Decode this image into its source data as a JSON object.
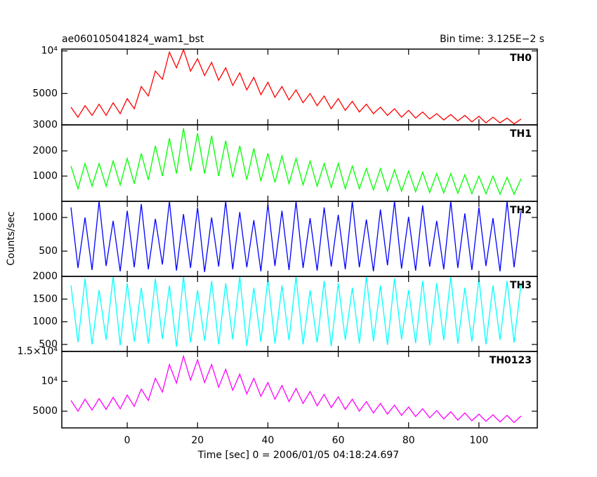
{
  "title": "ae060105041824_wam1_bst",
  "subtitle": "Bin time: 3.125E−2 s",
  "y_label": "Counts/sec",
  "x_label": "Time [sec] 0 = 2006/01/05 04:18:24.697",
  "chart_data": [
    {
      "type": "line",
      "log_y": true,
      "xlim": [
        -18.6,
        116.6
      ],
      "xticks": [
        0,
        20,
        40,
        60,
        80,
        100
      ],
      "ylim": [
        3000,
        10300
      ],
      "yticks": [
        3000,
        5000,
        {
          "value": 10000,
          "label": "10⁴"
        }
      ],
      "x": [
        -16,
        -14,
        -12,
        -10,
        -8,
        -6,
        -4,
        -2,
        0,
        2,
        4,
        6,
        8,
        10,
        12,
        14,
        16,
        18,
        20,
        22,
        24,
        26,
        28,
        30,
        32,
        34,
        36,
        38,
        40,
        42,
        44,
        46,
        48,
        50,
        52,
        54,
        56,
        58,
        60,
        62,
        64,
        66,
        68,
        70,
        72,
        74,
        76,
        78,
        80,
        82,
        84,
        86,
        88,
        90,
        92,
        94,
        96,
        98,
        100,
        102,
        104,
        106,
        108,
        110,
        112
      ],
      "series": [
        {
          "name": "TH0",
          "color": "#ff0000",
          "values": [
            4000,
            3400,
            4100,
            3500,
            4200,
            3500,
            4300,
            3600,
            4600,
            3900,
            5600,
            4800,
            7200,
            6300,
            9800,
            7600,
            10200,
            7200,
            8800,
            6700,
            8300,
            6200,
            7600,
            5700,
            7000,
            5300,
            6500,
            4900,
            6000,
            4700,
            5600,
            4500,
            5300,
            4300,
            5000,
            4100,
            4800,
            3900,
            4600,
            3800,
            4400,
            3700,
            4200,
            3600,
            4000,
            3500,
            3900,
            3400,
            3800,
            3350,
            3700,
            3300,
            3600,
            3250,
            3550,
            3200,
            3500,
            3150,
            3450,
            3100,
            3400,
            3100,
            3350,
            3050,
            3300
          ]
        }
      ]
    },
    {
      "type": "line",
      "log_y": false,
      "xlim": [
        -18.6,
        116.6
      ],
      "xticks": [
        0,
        20,
        40,
        60,
        80,
        100
      ],
      "ylim": [
        0,
        3030
      ],
      "yticks": [
        1000,
        2000
      ],
      "x": [
        -16,
        -14,
        -12,
        -10,
        -8,
        -6,
        -4,
        -2,
        0,
        2,
        4,
        6,
        8,
        10,
        12,
        14,
        16,
        18,
        20,
        22,
        24,
        26,
        28,
        30,
        32,
        34,
        36,
        38,
        40,
        42,
        44,
        46,
        48,
        50,
        52,
        54,
        56,
        58,
        60,
        62,
        64,
        66,
        68,
        70,
        72,
        74,
        76,
        78,
        80,
        82,
        84,
        86,
        88,
        90,
        92,
        94,
        96,
        98,
        100,
        102,
        104,
        106,
        108,
        110,
        112
      ],
      "series": [
        {
          "name": "TH1",
          "color": "#00ff00",
          "values": [
            1400,
            500,
            1500,
            600,
            1500,
            600,
            1600,
            650,
            1700,
            700,
            1900,
            850,
            2200,
            1000,
            2500,
            1100,
            2900,
            1200,
            2700,
            1100,
            2600,
            1000,
            2400,
            950,
            2200,
            850,
            2100,
            800,
            1900,
            750,
            1800,
            700,
            1700,
            650,
            1600,
            600,
            1500,
            550,
            1500,
            500,
            1400,
            500,
            1300,
            450,
            1300,
            400,
            1250,
            400,
            1200,
            380,
            1150,
            350,
            1100,
            330,
            1100,
            320,
            1050,
            300,
            1000,
            300,
            1000,
            280,
            950,
            280,
            900
          ]
        }
      ]
    },
    {
      "type": "line",
      "log_y": false,
      "xlim": [
        -18.6,
        116.6
      ],
      "xticks": [
        0,
        20,
        40,
        60,
        80,
        100
      ],
      "ylim": [
        125,
        1240
      ],
      "yticks": [
        500,
        1000
      ],
      "x": [
        -16,
        -14,
        -12,
        -10,
        -8,
        -6,
        -4,
        -2,
        0,
        2,
        4,
        6,
        8,
        10,
        12,
        14,
        16,
        18,
        20,
        22,
        24,
        26,
        28,
        30,
        32,
        34,
        36,
        38,
        40,
        42,
        44,
        46,
        48,
        50,
        52,
        54,
        56,
        58,
        60,
        62,
        64,
        66,
        68,
        70,
        72,
        74,
        76,
        78,
        80,
        82,
        84,
        86,
        88,
        90,
        92,
        94,
        96,
        98,
        100,
        102,
        104,
        106,
        108,
        110,
        112
      ],
      "series": [
        {
          "name": "TH2",
          "color": "#0000ff",
          "values": [
            1150,
            250,
            1000,
            220,
            1240,
            280,
            950,
            200,
            1100,
            260,
            1200,
            230,
            980,
            300,
            1240,
            210,
            1050,
            250,
            1150,
            190,
            1000,
            270,
            1240,
            230,
            1080,
            260,
            960,
            200,
            1200,
            280,
            1100,
            220,
            1240,
            250,
            990,
            210,
            1150,
            270,
            1040,
            230,
            1240,
            260,
            970,
            200,
            1120,
            290,
            1240,
            240,
            1010,
            210,
            1180,
            270,
            950,
            230,
            1240,
            250,
            1060,
            220,
            1150,
            280,
            990,
            200,
            1240,
            260,
            1100
          ]
        }
      ]
    },
    {
      "type": "line",
      "log_y": false,
      "xlim": [
        -18.6,
        116.6
      ],
      "xticks": [
        0,
        20,
        40,
        60,
        80,
        100
      ],
      "ylim": [
        346,
        2000
      ],
      "yticks": [
        500,
        1000,
        1500,
        2000
      ],
      "x": [
        -16,
        -14,
        -12,
        -10,
        -8,
        -6,
        -4,
        -2,
        0,
        2,
        4,
        6,
        8,
        10,
        12,
        14,
        16,
        18,
        20,
        22,
        24,
        26,
        28,
        30,
        32,
        34,
        36,
        38,
        40,
        42,
        44,
        46,
        48,
        50,
        52,
        54,
        56,
        58,
        60,
        62,
        64,
        66,
        68,
        70,
        72,
        74,
        76,
        78,
        80,
        82,
        84,
        86,
        88,
        90,
        92,
        94,
        96,
        98,
        100,
        102,
        104,
        106,
        108,
        110,
        112
      ],
      "series": [
        {
          "name": "TH3",
          "color": "#00ffff",
          "values": [
            1800,
            550,
            1950,
            500,
            1700,
            600,
            2000,
            480,
            1850,
            560,
            1750,
            520,
            1950,
            620,
            1800,
            450,
            2000,
            540,
            1700,
            580,
            1900,
            500,
            1850,
            610,
            2000,
            470,
            1750,
            560,
            1950,
            520,
            1800,
            590,
            2000,
            500,
            1700,
            540,
            1900,
            460,
            1850,
            600,
            1750,
            520,
            2000,
            570,
            1800,
            490,
            1950,
            610,
            1700,
            530,
            1900,
            480,
            1850,
            590,
            2000,
            520,
            1750,
            560,
            1950,
            500,
            1800,
            600,
            1900,
            540,
            1850
          ]
        }
      ]
    },
    {
      "type": "line",
      "log_y": false,
      "xlim": [
        -18.6,
        116.6
      ],
      "xticks": [
        0,
        20,
        40,
        60,
        80,
        100
      ],
      "ylim": [
        2200,
        15000
      ],
      "yticks": [
        5000,
        {
          "value": 10000,
          "label": "10⁴"
        },
        {
          "value": 15000,
          "label": "1.5×10⁴"
        }
      ],
      "x": [
        -16,
        -14,
        -12,
        -10,
        -8,
        -6,
        -4,
        -2,
        0,
        2,
        4,
        6,
        8,
        10,
        12,
        14,
        16,
        18,
        20,
        22,
        24,
        26,
        28,
        30,
        32,
        34,
        36,
        38,
        40,
        42,
        44,
        46,
        48,
        50,
        52,
        54,
        56,
        58,
        60,
        62,
        64,
        66,
        68,
        70,
        72,
        74,
        76,
        78,
        80,
        82,
        84,
        86,
        88,
        90,
        92,
        94,
        96,
        98,
        100,
        102,
        104,
        106,
        108,
        110,
        112
      ],
      "series": [
        {
          "name": "TH0123",
          "color": "#ff00ff",
          "values": [
            6800,
            5000,
            7000,
            5200,
            7100,
            5300,
            7300,
            5400,
            7700,
            5800,
            8700,
            6800,
            10500,
            8200,
            12800,
            9700,
            14200,
            10200,
            13600,
            9800,
            12800,
            9000,
            12000,
            8500,
            11200,
            7900,
            10500,
            7500,
            9800,
            7000,
            9300,
            6600,
            8800,
            6300,
            8300,
            5900,
            7800,
            5600,
            7400,
            5300,
            7000,
            5000,
            6600,
            4700,
            6300,
            4500,
            6000,
            4300,
            5700,
            4100,
            5400,
            3900,
            5100,
            3700,
            4900,
            3500,
            4700,
            3400,
            4500,
            3300,
            4400,
            3200,
            4300,
            3100,
            4200
          ]
        }
      ]
    }
  ]
}
